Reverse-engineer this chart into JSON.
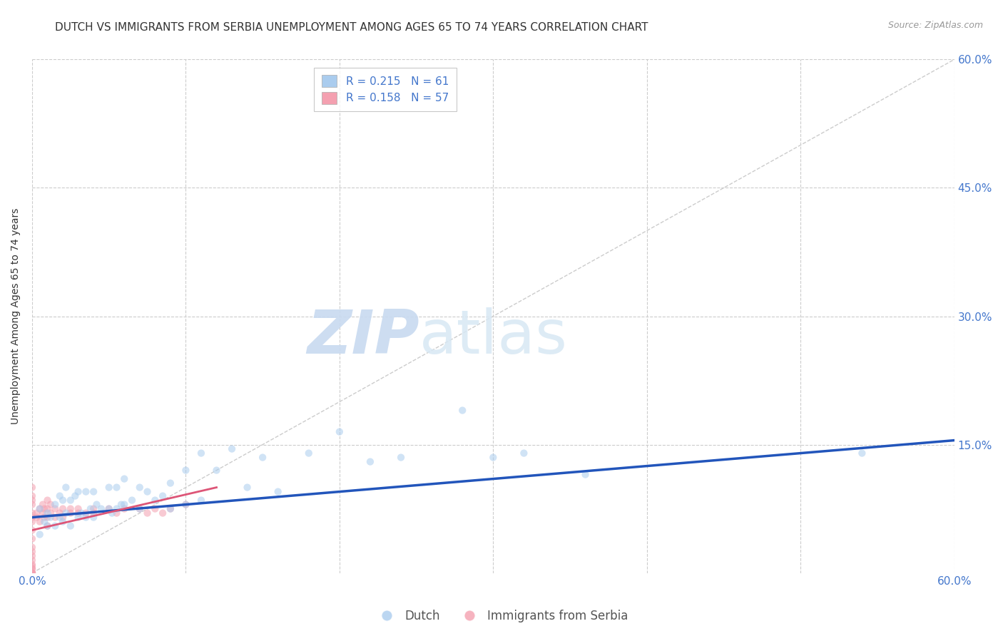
{
  "title": "DUTCH VS IMMIGRANTS FROM SERBIA UNEMPLOYMENT AMONG AGES 65 TO 74 YEARS CORRELATION CHART",
  "source": "Source: ZipAtlas.com",
  "ylabel": "Unemployment Among Ages 65 to 74 years",
  "xlim": [
    0.0,
    0.6
  ],
  "ylim": [
    0.0,
    0.6
  ],
  "grid_color": "#cccccc",
  "background_color": "#ffffff",
  "dutch_color": "#aaccee",
  "serbia_color": "#f4a0b0",
  "dutch_line_color": "#2255bb",
  "serbia_line_color": "#dd5577",
  "diagonal_color": "#cccccc",
  "watermark_zip": "ZIP",
  "watermark_atlas": "atlas",
  "legend_R_dutch": "R = 0.215",
  "legend_N_dutch": "N = 61",
  "legend_R_serbia": "R = 0.158",
  "legend_N_serbia": "N = 57",
  "dutch_scatter_x": [
    0.005,
    0.005,
    0.008,
    0.01,
    0.01,
    0.012,
    0.015,
    0.015,
    0.018,
    0.018,
    0.02,
    0.02,
    0.022,
    0.022,
    0.025,
    0.025,
    0.028,
    0.03,
    0.03,
    0.032,
    0.035,
    0.035,
    0.038,
    0.04,
    0.04,
    0.042,
    0.045,
    0.05,
    0.05,
    0.052,
    0.055,
    0.055,
    0.058,
    0.06,
    0.06,
    0.065,
    0.07,
    0.07,
    0.075,
    0.08,
    0.085,
    0.09,
    0.09,
    0.1,
    0.1,
    0.11,
    0.11,
    0.12,
    0.13,
    0.14,
    0.15,
    0.16,
    0.18,
    0.2,
    0.22,
    0.24,
    0.28,
    0.3,
    0.32,
    0.36,
    0.54
  ],
  "dutch_scatter_y": [
    0.075,
    0.045,
    0.06,
    0.07,
    0.055,
    0.065,
    0.08,
    0.055,
    0.09,
    0.065,
    0.085,
    0.06,
    0.1,
    0.07,
    0.085,
    0.055,
    0.09,
    0.095,
    0.065,
    0.07,
    0.095,
    0.065,
    0.075,
    0.095,
    0.065,
    0.08,
    0.075,
    0.1,
    0.075,
    0.07,
    0.1,
    0.075,
    0.08,
    0.11,
    0.08,
    0.085,
    0.1,
    0.075,
    0.095,
    0.085,
    0.09,
    0.105,
    0.075,
    0.12,
    0.08,
    0.14,
    0.085,
    0.12,
    0.145,
    0.1,
    0.135,
    0.095,
    0.14,
    0.165,
    0.13,
    0.135,
    0.19,
    0.135,
    0.14,
    0.115,
    0.14
  ],
  "serbia_scatter_x": [
    0.0,
    0.0,
    0.0,
    0.0,
    0.0,
    0.0,
    0.0,
    0.0,
    0.0,
    0.0,
    0.0,
    0.0,
    0.0,
    0.0,
    0.0,
    0.0,
    0.0,
    0.0,
    0.0,
    0.0,
    0.0,
    0.0,
    0.003,
    0.003,
    0.005,
    0.005,
    0.007,
    0.007,
    0.008,
    0.008,
    0.01,
    0.01,
    0.01,
    0.01,
    0.012,
    0.012,
    0.015,
    0.015,
    0.018,
    0.02,
    0.02,
    0.025,
    0.025,
    0.03,
    0.03,
    0.035,
    0.04,
    0.04,
    0.05,
    0.055,
    0.06,
    0.07,
    0.075,
    0.08,
    0.085,
    0.09,
    0.1
  ],
  "serbia_scatter_y": [
    0.0,
    0.0,
    0.0,
    0.0,
    0.0,
    0.005,
    0.005,
    0.008,
    0.01,
    0.015,
    0.02,
    0.025,
    0.03,
    0.04,
    0.05,
    0.06,
    0.065,
    0.07,
    0.08,
    0.085,
    0.09,
    0.1,
    0.065,
    0.07,
    0.06,
    0.075,
    0.07,
    0.08,
    0.065,
    0.075,
    0.055,
    0.065,
    0.075,
    0.085,
    0.07,
    0.08,
    0.065,
    0.075,
    0.07,
    0.065,
    0.075,
    0.07,
    0.075,
    0.07,
    0.075,
    0.07,
    0.07,
    0.075,
    0.075,
    0.07,
    0.075,
    0.075,
    0.07,
    0.075,
    0.07,
    0.075,
    0.08
  ],
  "title_fontsize": 11,
  "axis_label_fontsize": 10,
  "tick_fontsize": 11,
  "legend_fontsize": 11,
  "source_fontsize": 9,
  "scatter_size": 55,
  "scatter_alpha": 0.55,
  "dutch_trend_x": [
    0.0,
    0.6
  ],
  "dutch_trend_y": [
    0.065,
    0.155
  ],
  "serbia_trend_x": [
    0.0,
    0.12
  ],
  "serbia_trend_y": [
    0.05,
    0.1
  ]
}
